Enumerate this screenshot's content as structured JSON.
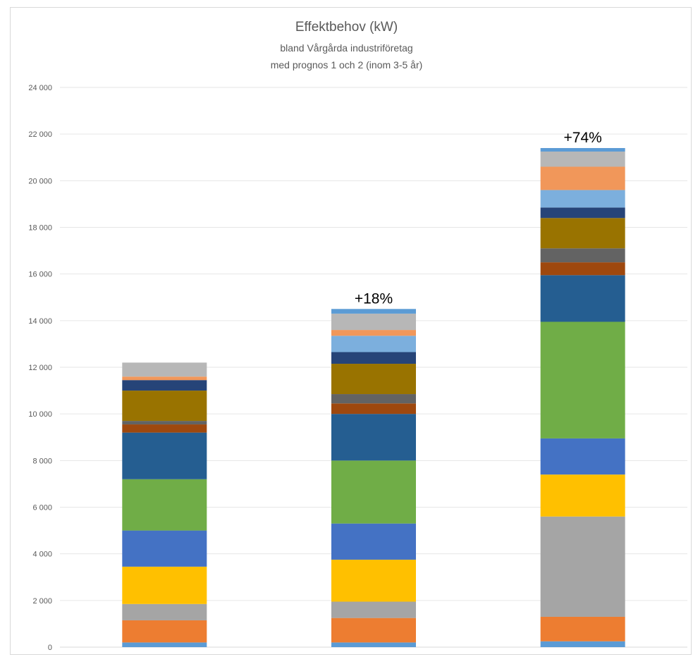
{
  "chart_data": {
    "type": "bar",
    "stacked": true,
    "title": "Effektbehov (kW)",
    "subtitle_lines": [
      "bland Vårgårda industriföretag",
      "med prognos 1 och 2 (inom 3-5 år)"
    ],
    "xlabel": "",
    "ylabel": "",
    "categories": [
      "",
      "",
      ""
    ],
    "ylim": [
      0,
      24000
    ],
    "yticks": [
      0,
      2000,
      4000,
      6000,
      8000,
      10000,
      12000,
      14000,
      16000,
      18000,
      20000,
      22000,
      24000
    ],
    "ytick_labels": [
      "0",
      "2 000",
      "4 000",
      "6 000",
      "8 000",
      "10 000",
      "12 000",
      "14 000",
      "16 000",
      "18 000",
      "20 000",
      "22 000",
      "24 000"
    ],
    "grid": true,
    "legend": "none",
    "series": [
      {
        "color": "#5b9bd5",
        "values": [
          200,
          200,
          250
        ]
      },
      {
        "color": "#ed7d31",
        "values": [
          950,
          1050,
          1050
        ]
      },
      {
        "color": "#a5a5a5",
        "values": [
          700,
          700,
          4300
        ]
      },
      {
        "color": "#ffc000",
        "values": [
          1600,
          1800,
          1800
        ]
      },
      {
        "color": "#4472c4",
        "values": [
          1550,
          1550,
          1550
        ]
      },
      {
        "color": "#70ad47",
        "values": [
          2200,
          2700,
          5000
        ]
      },
      {
        "color": "#255e91",
        "values": [
          2000,
          2000,
          2000
        ]
      },
      {
        "color": "#9e480e",
        "values": [
          350,
          450,
          550
        ]
      },
      {
        "color": "#636363",
        "values": [
          150,
          400,
          600
        ]
      },
      {
        "color": "#997300",
        "values": [
          1300,
          1300,
          1300
        ]
      },
      {
        "color": "#264478",
        "values": [
          450,
          500,
          450
        ]
      },
      {
        "color": "#7cafdd",
        "values": [
          0,
          700,
          750
        ]
      },
      {
        "color": "#f1975a",
        "values": [
          150,
          250,
          1000
        ]
      },
      {
        "color": "#b7b7b7",
        "values": [
          600,
          700,
          650
        ]
      },
      {
        "color": "#5b9bd5",
        "values": [
          0,
          200,
          150
        ]
      }
    ],
    "annotations": [
      "",
      "+18%",
      "+74%"
    ]
  }
}
